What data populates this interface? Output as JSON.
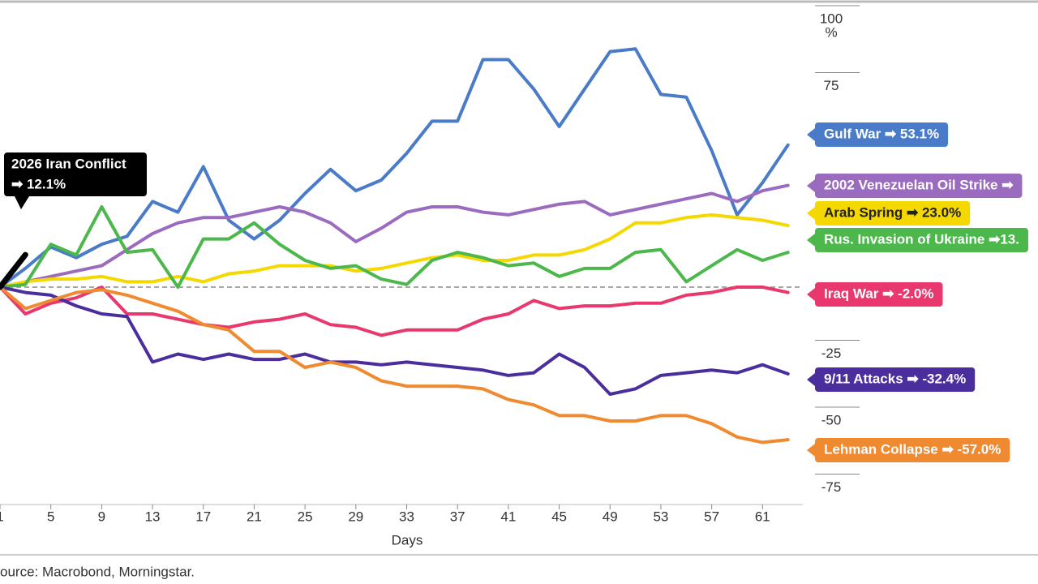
{
  "chart_data": {
    "type": "line",
    "x_label": "Days",
    "source": "ource: Macrobond, Morningstar.",
    "y_unit": "%",
    "x": [
      1,
      3,
      5,
      7,
      9,
      11,
      13,
      15,
      17,
      19,
      21,
      23,
      25,
      27,
      29,
      31,
      33,
      35,
      37,
      39,
      41,
      43,
      45,
      47,
      49,
      51,
      53,
      55,
      57,
      59,
      61,
      63
    ],
    "xlim": [
      1,
      65
    ],
    "xticks": [
      1,
      5,
      9,
      13,
      17,
      21,
      25,
      29,
      33,
      37,
      41,
      45,
      49,
      53,
      57,
      61
    ],
    "ylim": [
      -80,
      100
    ],
    "yticks": [
      100,
      75,
      -25,
      -50,
      -75
    ],
    "zero_line": true,
    "series": [
      {
        "name": "Gulf War",
        "label": "Gulf War ➡ 53.1%",
        "color": "#4a7bc8",
        "values": [
          0,
          7,
          15,
          11,
          16,
          19,
          32,
          28,
          45,
          25,
          18,
          25,
          35,
          44,
          36,
          40,
          50,
          62,
          62,
          85,
          85,
          74,
          60,
          74,
          88,
          89,
          72,
          71,
          51,
          27,
          39,
          53.1
        ]
      },
      {
        "name": "2002 Venezuelan Oil Strike",
        "label": "2002 Venezuelan Oil Strike ➡",
        "color": "#9b6bbf",
        "values": [
          0,
          2,
          4,
          6,
          8,
          14,
          20,
          24,
          26,
          26,
          28,
          30,
          28,
          24,
          17,
          22,
          28,
          30,
          30,
          28,
          27,
          29,
          31,
          32,
          27,
          29,
          31,
          33,
          35,
          32,
          36,
          38
        ]
      },
      {
        "name": "Arab Spring",
        "label": "Arab Spring ➡ 23.0%",
        "color": "#f5d800",
        "values": [
          0,
          2,
          3,
          3,
          4,
          2,
          2,
          4,
          2,
          5,
          6,
          8,
          8,
          8,
          6,
          7,
          9,
          11,
          12,
          10,
          10,
          12,
          12,
          14,
          18,
          24,
          24,
          26,
          27,
          26,
          25,
          23.0
        ]
      },
      {
        "name": "Rus. Invasion of Ukraine",
        "label": "Rus. Invasion of Ukraine ➡13.",
        "color": "#4cb84c",
        "values": [
          0,
          1,
          16,
          12,
          30,
          13,
          14,
          0,
          18,
          18,
          24,
          16,
          10,
          7,
          8,
          3,
          1,
          10,
          13,
          11,
          8,
          9,
          4,
          7,
          7,
          13,
          14,
          2,
          8,
          14,
          10,
          13
        ]
      },
      {
        "name": "Iraq War",
        "label": "Iraq War ➡ -2.0%",
        "color": "#e8386e",
        "values": [
          0,
          -10,
          -6,
          -4,
          0,
          -10,
          -10,
          -12,
          -14,
          -15,
          -13,
          -12,
          -10,
          -14,
          -15,
          -18,
          -16,
          -16,
          -16,
          -12,
          -10,
          -5,
          -8,
          -7,
          -7,
          -6,
          -6,
          -3,
          -2,
          0,
          0,
          -2.0
        ]
      },
      {
        "name": "9/11 Attacks",
        "label": "9/11 Attacks ➡ -32.4%",
        "color": "#4b2e9e",
        "values": [
          0,
          -2,
          -3,
          -7,
          -10,
          -11,
          -28,
          -25,
          -27,
          -25,
          -27,
          -27,
          -25,
          -28,
          -28,
          -29,
          -28,
          -29,
          -30,
          -31,
          -33,
          -32,
          -25,
          -30,
          -40,
          -38,
          -33,
          -32,
          -31,
          -32,
          -29,
          -32.4
        ]
      },
      {
        "name": "Lehman Collapse",
        "label": "Lehman Collapse ➡ -57.0%",
        "color": "#f08a30",
        "values": [
          0,
          -8,
          -5,
          -2,
          -1,
          -3,
          -6,
          -9,
          -14,
          -16,
          -24,
          -24,
          -30,
          -28,
          -30,
          -35,
          -37,
          -37,
          -37,
          -38,
          -42,
          -44,
          -48,
          -48,
          -50,
          -50,
          -48,
          -48,
          -51,
          -56,
          -58,
          -57.0
        ]
      },
      {
        "name": "2026 Iran Conflict",
        "label": "➡ 12.1%",
        "color": "#000000",
        "values": [
          0,
          12.1,
          null,
          null,
          null,
          null,
          null,
          null,
          null,
          null,
          null,
          null,
          null,
          null,
          null,
          null,
          null,
          null,
          null,
          null,
          null,
          null,
          null,
          null,
          null,
          null,
          null,
          null,
          null,
          null,
          null,
          null
        ]
      }
    ]
  }
}
